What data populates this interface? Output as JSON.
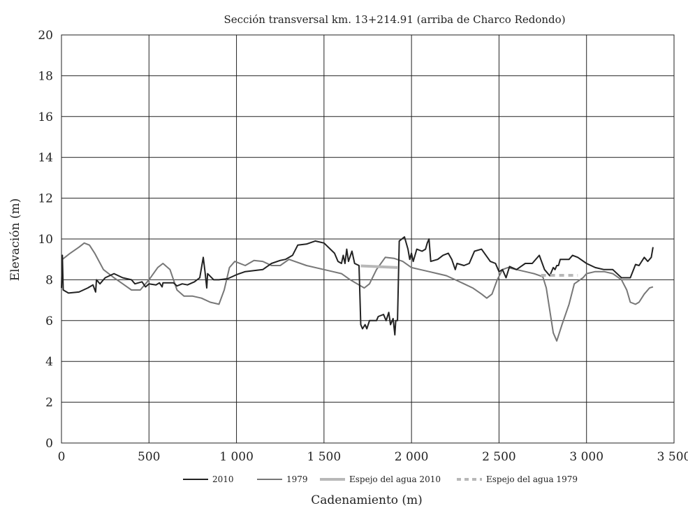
{
  "chart_data": {
    "type": "line",
    "title": "Sección transversal km. 13+214.91 (arriba de Charco Redondo)",
    "xlabel": "Cadenamiento (m)",
    "ylabel": "Elevación (m)",
    "xlim": [
      0,
      3500
    ],
    "ylim": [
      0,
      20
    ],
    "xticks": [
      0,
      500,
      1000,
      1500,
      2000,
      2500,
      3000,
      3500
    ],
    "xtick_labels": [
      "0",
      "500",
      "1 000",
      "1 500",
      "2 000",
      "2 500",
      "3 000",
      "3 500"
    ],
    "yticks": [
      0,
      2,
      4,
      6,
      8,
      10,
      12,
      14,
      16,
      18,
      20
    ],
    "ytick_labels": [
      "0",
      "2",
      "4",
      "6",
      "8",
      "10",
      "12",
      "14",
      "16",
      "18",
      "20"
    ],
    "grid": true,
    "legend_position": "bottom",
    "series": [
      {
        "name": "2010",
        "color": "#222222",
        "style": "solid",
        "points": [
          [
            0,
            7.6
          ],
          [
            5,
            9.2
          ],
          [
            10,
            7.5
          ],
          [
            40,
            7.35
          ],
          [
            100,
            7.4
          ],
          [
            150,
            7.6
          ],
          [
            180,
            7.75
          ],
          [
            195,
            7.4
          ],
          [
            200,
            8.0
          ],
          [
            220,
            7.8
          ],
          [
            250,
            8.1
          ],
          [
            300,
            8.3
          ],
          [
            350,
            8.1
          ],
          [
            400,
            8.0
          ],
          [
            420,
            7.8
          ],
          [
            460,
            7.9
          ],
          [
            480,
            7.65
          ],
          [
            500,
            7.8
          ],
          [
            540,
            7.75
          ],
          [
            560,
            7.85
          ],
          [
            575,
            7.65
          ],
          [
            580,
            7.85
          ],
          [
            640,
            7.85
          ],
          [
            660,
            7.7
          ],
          [
            690,
            7.8
          ],
          [
            720,
            7.75
          ],
          [
            760,
            7.9
          ],
          [
            790,
            8.1
          ],
          [
            800,
            8.6
          ],
          [
            810,
            9.1
          ],
          [
            820,
            8.4
          ],
          [
            830,
            7.6
          ],
          [
            835,
            8.3
          ],
          [
            870,
            8.0
          ],
          [
            900,
            8.0
          ],
          [
            950,
            8.05
          ],
          [
            1000,
            8.25
          ],
          [
            1050,
            8.4
          ],
          [
            1100,
            8.45
          ],
          [
            1150,
            8.5
          ],
          [
            1200,
            8.8
          ],
          [
            1250,
            8.95
          ],
          [
            1280,
            9.0
          ],
          [
            1320,
            9.2
          ],
          [
            1350,
            9.7
          ],
          [
            1400,
            9.75
          ],
          [
            1450,
            9.9
          ],
          [
            1500,
            9.8
          ],
          [
            1560,
            9.3
          ],
          [
            1580,
            8.9
          ],
          [
            1600,
            8.8
          ],
          [
            1610,
            9.2
          ],
          [
            1620,
            8.8
          ],
          [
            1630,
            9.5
          ],
          [
            1640,
            8.9
          ],
          [
            1660,
            9.4
          ],
          [
            1675,
            8.8
          ],
          [
            1700,
            8.7
          ],
          [
            1710,
            5.8
          ],
          [
            1720,
            5.6
          ],
          [
            1735,
            5.8
          ],
          [
            1745,
            5.6
          ],
          [
            1760,
            6.0
          ],
          [
            1800,
            6.0
          ],
          [
            1810,
            6.2
          ],
          [
            1840,
            6.3
          ],
          [
            1855,
            6.0
          ],
          [
            1870,
            6.4
          ],
          [
            1880,
            5.8
          ],
          [
            1895,
            6.1
          ],
          [
            1905,
            5.3
          ],
          [
            1910,
            6.0
          ],
          [
            1920,
            6.0
          ],
          [
            1930,
            9.9
          ],
          [
            1960,
            10.1
          ],
          [
            1980,
            9.5
          ],
          [
            1990,
            9.0
          ],
          [
            2000,
            9.3
          ],
          [
            2010,
            8.9
          ],
          [
            2030,
            9.5
          ],
          [
            2060,
            9.4
          ],
          [
            2080,
            9.5
          ],
          [
            2090,
            9.8
          ],
          [
            2100,
            10.0
          ],
          [
            2110,
            8.9
          ],
          [
            2150,
            9.0
          ],
          [
            2180,
            9.2
          ],
          [
            2210,
            9.3
          ],
          [
            2230,
            9.0
          ],
          [
            2250,
            8.5
          ],
          [
            2260,
            8.8
          ],
          [
            2300,
            8.7
          ],
          [
            2330,
            8.8
          ],
          [
            2360,
            9.4
          ],
          [
            2400,
            9.5
          ],
          [
            2450,
            8.9
          ],
          [
            2480,
            8.8
          ],
          [
            2500,
            8.4
          ],
          [
            2520,
            8.5
          ],
          [
            2540,
            8.1
          ],
          [
            2560,
            8.65
          ],
          [
            2600,
            8.5
          ],
          [
            2650,
            8.8
          ],
          [
            2690,
            8.8
          ],
          [
            2730,
            9.2
          ],
          [
            2760,
            8.5
          ],
          [
            2790,
            8.2
          ],
          [
            2810,
            8.6
          ],
          [
            2820,
            8.5
          ],
          [
            2830,
            8.7
          ],
          [
            2840,
            8.7
          ],
          [
            2850,
            9.0
          ],
          [
            2900,
            9.0
          ],
          [
            2920,
            9.2
          ],
          [
            2950,
            9.1
          ],
          [
            3000,
            8.8
          ],
          [
            3050,
            8.6
          ],
          [
            3100,
            8.5
          ],
          [
            3150,
            8.5
          ],
          [
            3200,
            8.1
          ],
          [
            3250,
            8.1
          ],
          [
            3280,
            8.75
          ],
          [
            3300,
            8.7
          ],
          [
            3330,
            9.1
          ],
          [
            3350,
            8.9
          ],
          [
            3370,
            9.1
          ],
          [
            3380,
            9.6
          ]
        ]
      },
      {
        "name": "1979",
        "color": "#777777",
        "style": "solid",
        "points": [
          [
            5,
            9.0
          ],
          [
            50,
            9.3
          ],
          [
            100,
            9.6
          ],
          [
            130,
            9.8
          ],
          [
            160,
            9.7
          ],
          [
            190,
            9.3
          ],
          [
            240,
            8.5
          ],
          [
            300,
            8.1
          ],
          [
            350,
            7.8
          ],
          [
            400,
            7.5
          ],
          [
            450,
            7.5
          ],
          [
            500,
            8.0
          ],
          [
            550,
            8.6
          ],
          [
            580,
            8.8
          ],
          [
            620,
            8.5
          ],
          [
            660,
            7.5
          ],
          [
            700,
            7.2
          ],
          [
            750,
            7.2
          ],
          [
            800,
            7.1
          ],
          [
            850,
            6.9
          ],
          [
            900,
            6.8
          ],
          [
            930,
            7.5
          ],
          [
            960,
            8.6
          ],
          [
            990,
            8.9
          ],
          [
            1050,
            8.7
          ],
          [
            1100,
            8.95
          ],
          [
            1150,
            8.9
          ],
          [
            1200,
            8.7
          ],
          [
            1250,
            8.7
          ],
          [
            1300,
            9.0
          ],
          [
            1400,
            8.7
          ],
          [
            1500,
            8.5
          ],
          [
            1550,
            8.4
          ],
          [
            1600,
            8.3
          ],
          [
            1650,
            8.0
          ],
          [
            1700,
            7.75
          ],
          [
            1730,
            7.6
          ],
          [
            1760,
            7.8
          ],
          [
            1800,
            8.5
          ],
          [
            1850,
            9.1
          ],
          [
            1900,
            9.05
          ],
          [
            1950,
            8.9
          ],
          [
            2000,
            8.6
          ],
          [
            2050,
            8.5
          ],
          [
            2100,
            8.4
          ],
          [
            2150,
            8.3
          ],
          [
            2200,
            8.2
          ],
          [
            2250,
            8.0
          ],
          [
            2300,
            7.8
          ],
          [
            2350,
            7.6
          ],
          [
            2400,
            7.3
          ],
          [
            2430,
            7.1
          ],
          [
            2460,
            7.3
          ],
          [
            2490,
            8.0
          ],
          [
            2520,
            8.5
          ],
          [
            2550,
            8.6
          ],
          [
            2600,
            8.5
          ],
          [
            2650,
            8.4
          ],
          [
            2700,
            8.3
          ],
          [
            2750,
            8.15
          ],
          [
            2770,
            7.6
          ],
          [
            2790,
            6.5
          ],
          [
            2810,
            5.4
          ],
          [
            2830,
            5.0
          ],
          [
            2860,
            5.8
          ],
          [
            2900,
            6.8
          ],
          [
            2930,
            7.8
          ],
          [
            2980,
            8.1
          ],
          [
            3000,
            8.3
          ],
          [
            3050,
            8.4
          ],
          [
            3100,
            8.4
          ],
          [
            3150,
            8.3
          ],
          [
            3200,
            8.0
          ],
          [
            3230,
            7.5
          ],
          [
            3250,
            6.9
          ],
          [
            3280,
            6.8
          ],
          [
            3300,
            6.9
          ],
          [
            3330,
            7.3
          ],
          [
            3360,
            7.6
          ],
          [
            3380,
            7.65
          ]
        ]
      },
      {
        "name": "Espejo del agua 2010",
        "color": "#b8b8b8",
        "style": "thick",
        "points": [
          [
            1710,
            8.68
          ],
          [
            1920,
            8.6
          ]
        ]
      },
      {
        "name": "Espejo del agua 1979",
        "color": "#b8b8b8",
        "style": "dashed",
        "points": [
          [
            2740,
            8.22
          ],
          [
            2950,
            8.22
          ]
        ]
      }
    ]
  }
}
